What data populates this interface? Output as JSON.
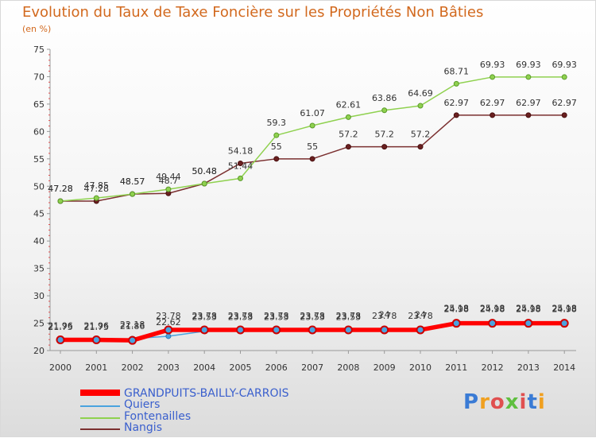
{
  "title": "Evolution du Taux de Taxe Foncière sur les Propriétés Non Bâties",
  "subtitle": "(en %)",
  "logo": {
    "text": "Proxiti",
    "letters": [
      "P",
      "r",
      "o",
      "x",
      "i",
      "t",
      "i"
    ]
  },
  "chart_data": {
    "type": "line",
    "title": "Evolution du Taux de Taxe Foncière sur les Propriétés Non Bâties",
    "ylabel": "(en %)",
    "xlabel": "",
    "ylim": [
      20,
      75
    ],
    "yticks": [
      20,
      25,
      30,
      35,
      40,
      45,
      50,
      55,
      60,
      65,
      70,
      75
    ],
    "grid": false,
    "legend_position": "bottom-left",
    "categories": [
      "2000",
      "2001",
      "2002",
      "2003",
      "2004",
      "2005",
      "2006",
      "2007",
      "2008",
      "2009",
      "2010",
      "2011",
      "2012",
      "2013",
      "2014"
    ],
    "series": [
      {
        "name": "GRANDPUITS-BAILLY-CARROIS",
        "color": "#ff0000",
        "values": [
          21.96,
          21.96,
          21.86,
          23.78,
          23.78,
          23.78,
          23.78,
          23.78,
          23.78,
          23.78,
          23.78,
          24.98,
          24.98,
          24.98,
          24.98
        ],
        "labels": [
          "21.96",
          "21.96",
          "21.86",
          "23.78",
          "23.78",
          "23.78",
          "23.78",
          "23.78",
          "23.78",
          "23.78",
          "23.78",
          "24.98",
          "24.98",
          "24.98",
          "24.98"
        ]
      },
      {
        "name": "Quiers",
        "color": "#4aa3df",
        "values": [
          21.75,
          21.75,
          22.18,
          22.62,
          23.53,
          23.53,
          23.53,
          23.53,
          23.53,
          24,
          24,
          25.18,
          25.18,
          25.18,
          25.18
        ],
        "labels": [
          "21.75",
          "21.75",
          "22.18",
          "22.62",
          "23.53",
          "23.53",
          "23.53",
          "23.53",
          "23.53",
          "24",
          "24",
          "25.18",
          "25.18",
          "25.18",
          "25.18"
        ]
      },
      {
        "name": "Fontenailles",
        "color": "#8fd14f",
        "values": [
          47.28,
          47.85,
          48.57,
          49.44,
          50.48,
          51.44,
          59.3,
          61.07,
          62.61,
          63.86,
          64.69,
          68.71,
          69.93,
          69.93,
          69.93
        ],
        "labels": [
          "47.28",
          "47.85",
          "48.57",
          "49.44",
          "50.48",
          "51.44",
          "59.3",
          "61.07",
          "62.61",
          "63.86",
          "64.69",
          "68.71",
          "69.93",
          "69.93",
          "69.93"
        ]
      },
      {
        "name": "Nangis",
        "color": "#7b3030",
        "values": [
          47.28,
          47.28,
          48.57,
          48.7,
          50.48,
          54.18,
          55,
          55,
          57.2,
          57.2,
          57.2,
          62.97,
          62.97,
          62.97,
          62.97
        ],
        "labels": [
          "47.28",
          "47.28",
          "48.57",
          "48.7",
          "50.48",
          "54.18",
          "55",
          "55",
          "57.2",
          "57.2",
          "57.2",
          "62.97",
          "62.97",
          "62.97",
          "62.97"
        ]
      }
    ]
  }
}
